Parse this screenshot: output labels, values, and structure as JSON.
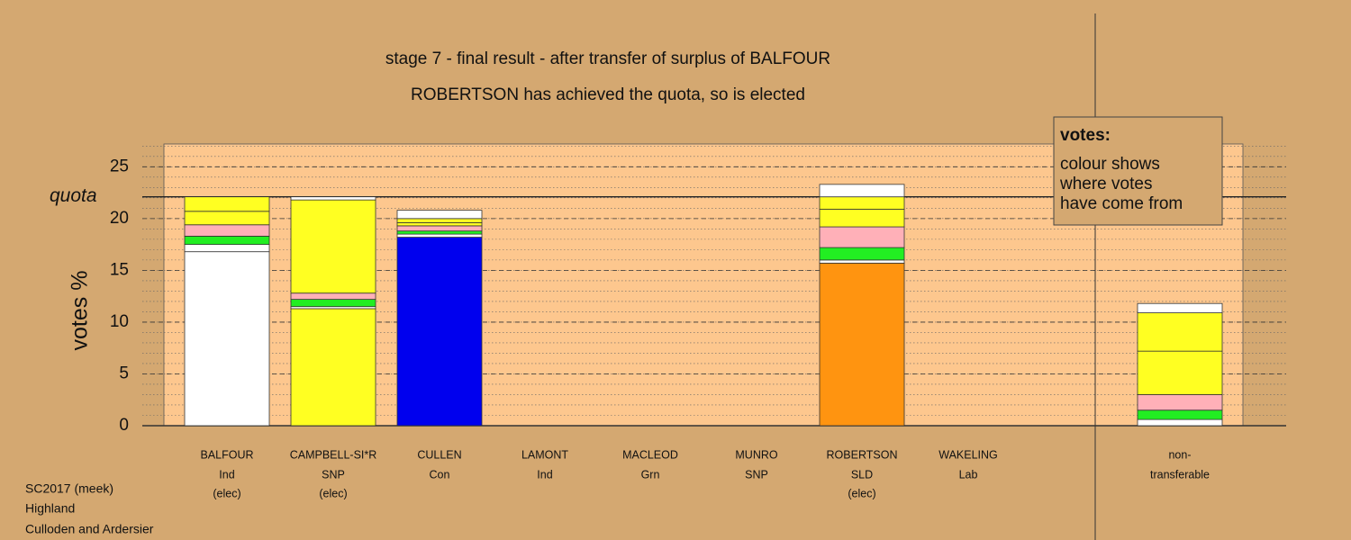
{
  "chart_data": {
    "type": "stacked-bar",
    "title": "stage 7 - final result - after transfer of surplus of BALFOUR",
    "subtitle": "ROBERTSON has achieved the quota, so is elected",
    "ylabel": "votes %",
    "quota": 22.1,
    "quota_label": "quota",
    "ylim": [
      0,
      27.2
    ],
    "yticks": [
      0,
      5,
      10,
      15,
      20,
      25
    ],
    "minor_step": 1,
    "categories": [
      "BALFOUR",
      "CAMPBELL-SI*R",
      "CULLEN",
      "LAMONT",
      "MACLEOD",
      "MUNRO",
      "ROBERTSON",
      "WAKELING",
      "non-"
    ],
    "parties": [
      "Ind",
      "SNP",
      "Con",
      "Ind",
      "Grn",
      "SNP",
      "SLD",
      "Lab",
      "transferable"
    ],
    "statuses": [
      "(elec)",
      "(elec)",
      null,
      null,
      null,
      null,
      "(elec)",
      null,
      null
    ],
    "segments": [
      [
        {
          "value": 16.8,
          "color": "#ffffff"
        },
        {
          "value": 0.7,
          "color": "#ffffff"
        },
        {
          "value": 0.8,
          "color": "#22ee22"
        },
        {
          "value": 1.1,
          "color": "#ffb0b8"
        },
        {
          "value": 1.3,
          "color": "#ffff22"
        },
        {
          "value": 1.4,
          "color": "#ffff22"
        }
      ],
      [
        {
          "value": 11.3,
          "color": "#ffff22"
        },
        {
          "value": 0.2,
          "color": "#ffffff"
        },
        {
          "value": 0.7,
          "color": "#22ee22"
        },
        {
          "value": 0.6,
          "color": "#ffb0b8"
        },
        {
          "value": 9.0,
          "color": "#ffff22"
        },
        {
          "value": 0.3,
          "color": "#ffffff"
        }
      ],
      [
        {
          "value": 18.2,
          "color": "#0000ee"
        },
        {
          "value": 0.3,
          "color": "#ffffff"
        },
        {
          "value": 0.3,
          "color": "#22ee22"
        },
        {
          "value": 0.5,
          "color": "#ffb0b8"
        },
        {
          "value": 0.3,
          "color": "#ffff22"
        },
        {
          "value": 0.4,
          "color": "#ffff22"
        },
        {
          "value": 0.8,
          "color": "#ffffff"
        }
      ],
      [
        {
          "value": 0,
          "color": "#ffffff"
        }
      ],
      [
        {
          "value": 0,
          "color": "#22ee22"
        }
      ],
      [
        {
          "value": 0,
          "color": "#ffff22"
        }
      ],
      [
        {
          "value": 15.7,
          "color": "#ff9410"
        },
        {
          "value": 0.3,
          "color": "#ffffff"
        },
        {
          "value": 1.2,
          "color": "#22ee22"
        },
        {
          "value": 2.0,
          "color": "#ffb0b8"
        },
        {
          "value": 1.7,
          "color": "#ffff22"
        },
        {
          "value": 1.2,
          "color": "#ffff22"
        },
        {
          "value": 1.2,
          "color": "#ffffff"
        }
      ],
      [
        {
          "value": 0,
          "color": "#ffb0b8"
        }
      ],
      [
        {
          "value": 0.6,
          "color": "#ffffff"
        },
        {
          "value": 0.9,
          "color": "#22ee22"
        },
        {
          "value": 1.5,
          "color": "#ffb0b8"
        },
        {
          "value": 4.2,
          "color": "#ffff22"
        },
        {
          "value": 3.7,
          "color": "#ffff22"
        },
        {
          "value": 0.9,
          "color": "#ffffff"
        }
      ]
    ],
    "legend": {
      "title": "votes:",
      "lines": [
        "colour shows",
        "where votes",
        "have come from"
      ]
    },
    "footer": [
      "SC2017 (meek)",
      "Highland",
      "Culloden and Ardersier"
    ]
  }
}
